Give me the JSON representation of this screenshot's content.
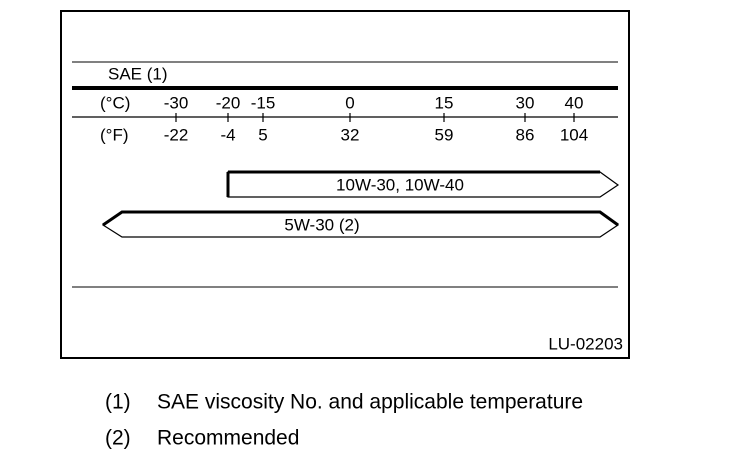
{
  "header": {
    "label": "SAE (1)",
    "celsius_unit": "(°C)",
    "fahrenheit_unit": "(°F)"
  },
  "scale": {
    "celsius": [
      "-30",
      "-20",
      "-15",
      "0",
      "15",
      "30",
      "40"
    ],
    "fahrenheit": [
      "-22",
      "-4",
      "5",
      "32",
      "59",
      "86",
      "104"
    ]
  },
  "arrows": [
    {
      "label": "10W-30, 10W-40"
    },
    {
      "label": "5W-30 (2)"
    }
  ],
  "figure_code": "LU-02203",
  "notes": [
    {
      "number": "(1)",
      "text": "SAE viscosity No. and applicable temperature"
    },
    {
      "number": "(2)",
      "text": "Recommended"
    }
  ]
}
